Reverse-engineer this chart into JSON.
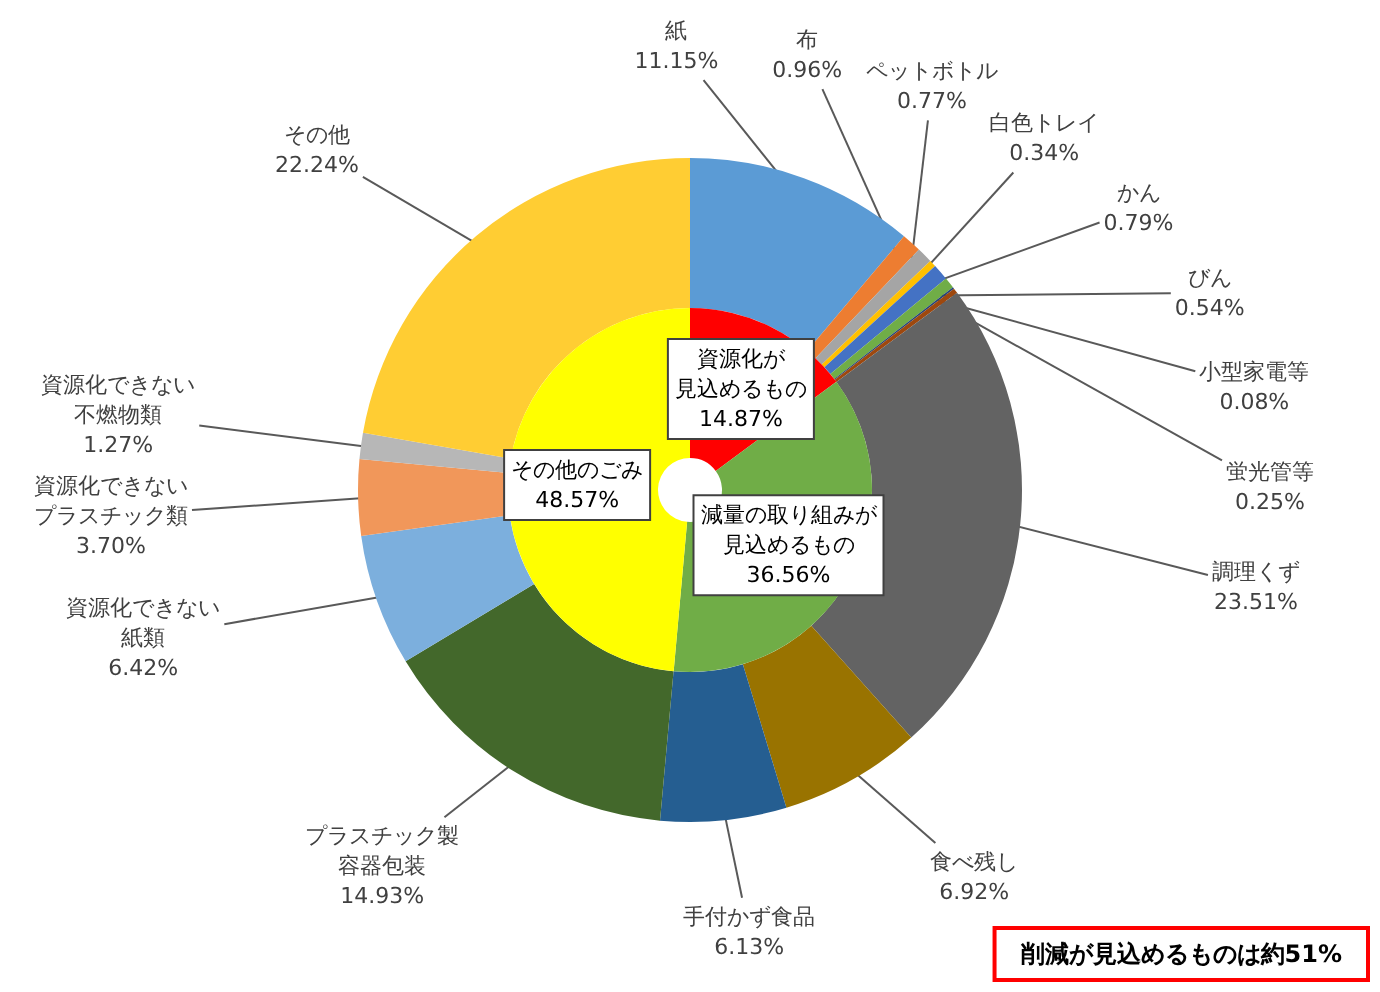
{
  "chart_data": [
    {
      "type": "donut",
      "categories": [
        "紙",
        "布",
        "ペットボトル",
        "白色トレイ",
        "かん",
        "びん",
        "小型家電等",
        "蛍光管等",
        "調理くず",
        "食べ残し",
        "手付かず食品",
        "プラスチック製容器包装",
        "資源化できない紙類",
        "資源化できないプラスチック類",
        "資源化できない不燃物類",
        "その他"
      ],
      "values": [
        11.15,
        0.96,
        0.77,
        0.34,
        0.79,
        0.54,
        0.08,
        0.25,
        23.51,
        6.92,
        6.13,
        14.93,
        6.42,
        3.7,
        1.27,
        22.24
      ],
      "value_labels": [
        "11.15%",
        "0.96%",
        "0.77%",
        "0.34%",
        "0.79%",
        "0.54%",
        "0.08%",
        "0.25%",
        "23.51%",
        "6.92%",
        "6.13%",
        "14.93%",
        "6.42%",
        "3.70%",
        "1.27%",
        "22.24%"
      ],
      "colors": [
        "#5b9bd5",
        "#ed7d31",
        "#a5a5a5",
        "#ffc000",
        "#4472c4",
        "#70ad47",
        "#264478",
        "#9e480e",
        "#636363",
        "#997300",
        "#255e91",
        "#43682b",
        "#7cafdd",
        "#f1975a",
        "#b7b7b7",
        "#ffcd33"
      ],
      "annotations": [
        "削減が見込めるものは約51%"
      ]
    },
    {
      "type": "donut",
      "categories": [
        "資源化が見込めるもの",
        "減量の取り組みが見込めるもの",
        "その他のごみ"
      ],
      "values": [
        14.87,
        36.56,
        48.57
      ],
      "value_labels": [
        "14.87%",
        "36.56%",
        "48.57%"
      ],
      "colors": [
        "#ff0000",
        "#70ad47",
        "#ffff00"
      ]
    }
  ]
}
